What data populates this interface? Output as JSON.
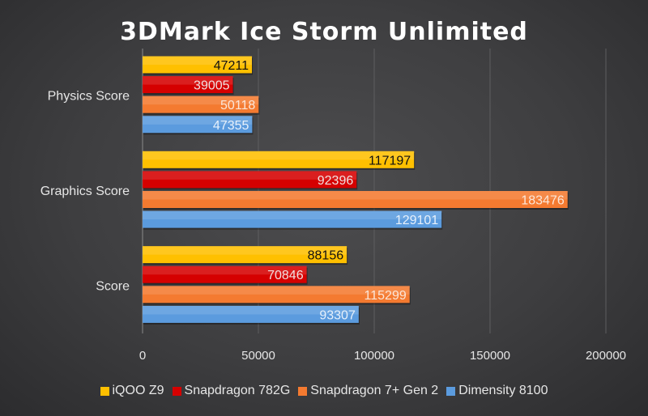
{
  "chart_data": {
    "type": "bar",
    "orientation": "horizontal",
    "title": "3DMark Ice Storm Unlimited",
    "categories": [
      "Physics Score",
      "Graphics Score",
      "Score"
    ],
    "series": [
      {
        "name": "iQOO Z9",
        "color": "#ffc000",
        "label_color": "#111111",
        "values": [
          47211,
          117197,
          88156
        ]
      },
      {
        "name": "Snapdragon 782G",
        "color": "#d50000",
        "label_color": "#f0e0e0",
        "values": [
          39005,
          92396,
          70846
        ]
      },
      {
        "name": "Snapdragon 7+ Gen 2",
        "color": "#f47a30",
        "label_color": "#fbe6d8",
        "values": [
          50118,
          183476,
          115299
        ]
      },
      {
        "name": "Dimensity 8100",
        "color": "#5b9bde",
        "label_color": "#e6f0fb",
        "values": [
          47355,
          129101,
          93307
        ]
      }
    ],
    "xlim": [
      0,
      200000
    ],
    "xticks": [
      "0",
      "50000",
      "100000",
      "150000",
      "200000"
    ],
    "grid": true,
    "legend_position": "bottom",
    "xlabel": "",
    "ylabel": ""
  }
}
